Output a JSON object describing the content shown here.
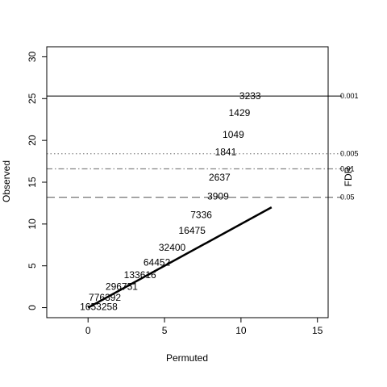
{
  "chart_data": {
    "type": "line",
    "xlabel": "Permuted",
    "ylabel": "Observed",
    "right_axis_label": "FDR",
    "xlim": [
      -2.7,
      15.7
    ],
    "ylim": [
      -1.2,
      31.2
    ],
    "x_ticks": [
      0,
      5,
      10,
      15
    ],
    "y_ticks": [
      0,
      5,
      10,
      15,
      20,
      25,
      30
    ],
    "grid": false,
    "series": [
      {
        "x": [
          0,
          12
        ],
        "y": [
          0,
          12
        ],
        "style": "solid",
        "color": "#000000"
      }
    ],
    "thresholds": [
      {
        "fdr": "0.001",
        "y": 25.3,
        "style": "solid"
      },
      {
        "fdr": "0.005",
        "y": 18.4,
        "style": "dotted"
      },
      {
        "fdr": "0.01",
        "y": 16.6,
        "style": "dashdot"
      },
      {
        "fdr": "0.05",
        "y": 13.2,
        "style": "dashed"
      }
    ],
    "point_labels": [
      {
        "text": "1653258",
        "x": 0.7,
        "y": 0.1
      },
      {
        "text": "776392",
        "x": 1.1,
        "y": 1.2
      },
      {
        "text": "296751",
        "x": 2.2,
        "y": 2.5
      },
      {
        "text": "133616",
        "x": 3.4,
        "y": 3.9
      },
      {
        "text": "64452",
        "x": 4.5,
        "y": 5.4
      },
      {
        "text": "32400",
        "x": 5.5,
        "y": 7.2
      },
      {
        "text": "16475",
        "x": 6.8,
        "y": 9.2
      },
      {
        "text": "7336",
        "x": 7.4,
        "y": 11.1
      },
      {
        "text": "3909",
        "x": 8.5,
        "y": 13.3
      },
      {
        "text": "2637",
        "x": 8.6,
        "y": 15.6
      },
      {
        "text": "1841",
        "x": 9.0,
        "y": 18.6
      },
      {
        "text": "1049",
        "x": 9.5,
        "y": 20.7
      },
      {
        "text": "1429",
        "x": 9.9,
        "y": 23.3
      },
      {
        "text": "3233",
        "x": 10.6,
        "y": 25.3
      }
    ]
  }
}
